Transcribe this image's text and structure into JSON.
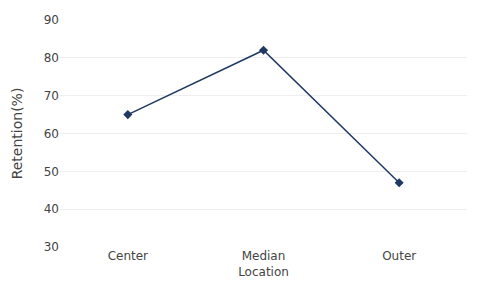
{
  "chart_data": {
    "type": "line",
    "categories": [
      "Center",
      "Median\nLocation",
      "Outer"
    ],
    "values": [
      65,
      82,
      47
    ],
    "color": "#1F3864",
    "marker": "diamond",
    "ylabel": "Retention(%)",
    "ylim": [
      30,
      90
    ],
    "yticks": [
      30,
      40,
      50,
      60,
      70,
      80,
      90
    ],
    "grid": true
  }
}
